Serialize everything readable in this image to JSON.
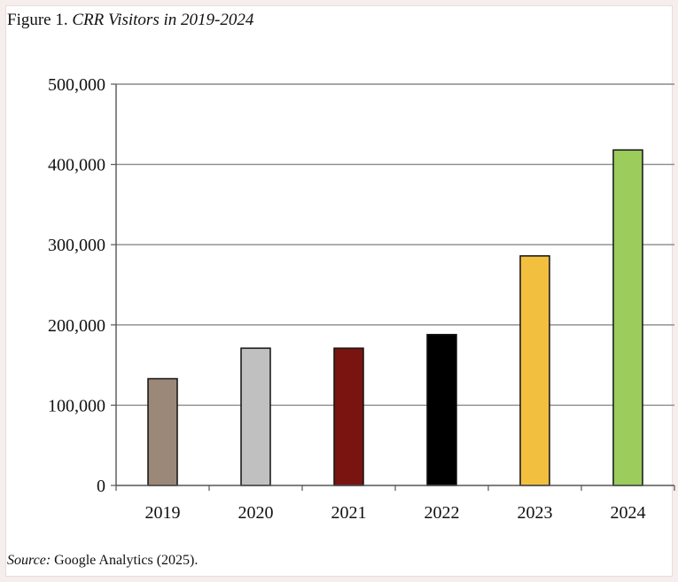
{
  "caption": {
    "prefix": "Figure 1.",
    "title": "CRR Visitors in 2019-2024"
  },
  "source": {
    "label": "Source:",
    "text": "Google Analytics (2025)."
  },
  "chart_data": {
    "type": "bar",
    "title": "CRR Visitors in 2019-2024",
    "xlabel": "",
    "ylabel": "",
    "categories": [
      "2019",
      "2020",
      "2021",
      "2022",
      "2023",
      "2024"
    ],
    "values": [
      133000,
      171000,
      171000,
      188000,
      286000,
      418000
    ],
    "colors": [
      "#9b8878",
      "#c0c0c0",
      "#7a1410",
      "#000000",
      "#f3bf3f",
      "#9bcc5c"
    ],
    "ylim": [
      0,
      500000
    ],
    "yticks": [
      0,
      100000,
      200000,
      300000,
      400000,
      500000
    ],
    "ytick_labels": [
      "0",
      "100,000",
      "200,000",
      "300,000",
      "400,000",
      "500,000"
    ],
    "grid": true,
    "legend": "none"
  }
}
